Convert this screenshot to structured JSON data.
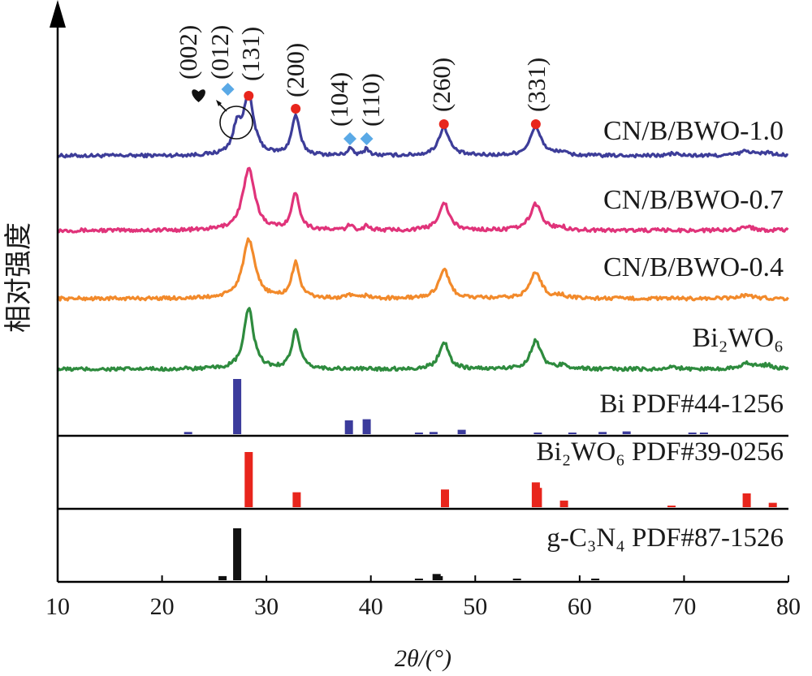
{
  "chart_data": {
    "type": "line",
    "xlabel": "2θ/(°)",
    "ylabel": "相对强度",
    "xlim": [
      10,
      80
    ],
    "xticks": [
      "10",
      "20",
      "30",
      "40",
      "50",
      "60",
      "70",
      "80"
    ],
    "grid": false,
    "series": [
      {
        "name": "CN/B/BWO-1.0",
        "color": "#3d3d99",
        "peaks": [
          [
            27.2,
            0.45,
            0.5
          ],
          [
            28.3,
            1.0,
            0.6
          ],
          [
            32.8,
            0.7,
            0.45
          ],
          [
            38.0,
            0.12,
            0.3
          ],
          [
            39.6,
            0.12,
            0.3
          ],
          [
            47.0,
            0.5,
            0.6
          ],
          [
            55.8,
            0.5,
            0.65
          ],
          [
            58.2,
            0.06,
            0.5
          ],
          [
            69.0,
            0.04,
            0.5
          ],
          [
            76.0,
            0.08,
            0.8
          ],
          [
            78.0,
            0.05,
            0.6
          ]
        ]
      },
      {
        "name": "CN/B/BWO-0.7",
        "color": "#e0337a",
        "peaks": [
          [
            28.3,
            1.0,
            0.7
          ],
          [
            32.8,
            0.6,
            0.45
          ],
          [
            38.0,
            0.08,
            0.3
          ],
          [
            39.6,
            0.08,
            0.3
          ],
          [
            47.0,
            0.45,
            0.6
          ],
          [
            55.8,
            0.43,
            0.65
          ],
          [
            58.2,
            0.05,
            0.5
          ],
          [
            76.0,
            0.06,
            0.8
          ]
        ]
      },
      {
        "name": "CN/B/BWO-0.4",
        "color": "#f28a2b",
        "peaks": [
          [
            28.3,
            1.0,
            0.7
          ],
          [
            32.8,
            0.6,
            0.45
          ],
          [
            38.0,
            0.06,
            0.3
          ],
          [
            39.6,
            0.06,
            0.3
          ],
          [
            47.0,
            0.5,
            0.6
          ],
          [
            55.8,
            0.45,
            0.65
          ],
          [
            58.2,
            0.05,
            0.5
          ],
          [
            76.0,
            0.06,
            0.8
          ]
        ]
      },
      {
        "name": "Bi₂WO₆",
        "color": "#2e8b3e",
        "peaks": [
          [
            28.3,
            1.0,
            0.55
          ],
          [
            32.8,
            0.63,
            0.45
          ],
          [
            47.0,
            0.45,
            0.55
          ],
          [
            55.8,
            0.47,
            0.6
          ],
          [
            58.5,
            0.07,
            0.5
          ],
          [
            69.0,
            0.04,
            0.5
          ],
          [
            76.0,
            0.1,
            0.8
          ],
          [
            78.0,
            0.06,
            0.6
          ]
        ]
      }
    ],
    "reference_patterns": [
      {
        "name": "Bi PDF#44-1256",
        "color": "#3b3b9c",
        "sticks": [
          [
            22.5,
            0.04
          ],
          [
            27.2,
            1.0
          ],
          [
            37.9,
            0.25
          ],
          [
            39.6,
            0.27
          ],
          [
            44.6,
            0.03
          ],
          [
            46.0,
            0.04
          ],
          [
            48.7,
            0.08
          ],
          [
            56.0,
            0.03
          ],
          [
            59.3,
            0.02
          ],
          [
            62.2,
            0.04
          ],
          [
            64.5,
            0.05
          ],
          [
            70.8,
            0.02
          ],
          [
            71.9,
            0.01
          ]
        ]
      },
      {
        "name": "Bi₂WO₆ PDF#39-0256",
        "color": "#e8251c",
        "sticks": [
          [
            28.3,
            1.0
          ],
          [
            32.9,
            0.27
          ],
          [
            47.1,
            0.32
          ],
          [
            55.8,
            0.45
          ],
          [
            56.0,
            0.35
          ],
          [
            58.5,
            0.12
          ],
          [
            68.8,
            0.03
          ],
          [
            76.0,
            0.25
          ],
          [
            78.5,
            0.08
          ]
        ]
      },
      {
        "name": "g-C₃N₄ PDF#87-1526",
        "color": "#111111",
        "sticks": [
          [
            25.8,
            0.08
          ],
          [
            27.2,
            1.0
          ],
          [
            44.6,
            0.03
          ],
          [
            46.3,
            0.12
          ],
          [
            46.5,
            0.08
          ],
          [
            54.0,
            0.02
          ],
          [
            61.5,
            0.02
          ]
        ]
      }
    ],
    "annotations": {
      "labels": [
        "(002)",
        "(012)",
        "(131)",
        "(200)",
        "(104)",
        "(110)",
        "(260)",
        "(331)"
      ],
      "marker_colors": {
        "bi2wo6": "#e8251c",
        "bi": "#5aa9e6",
        "gcn": "#111111"
      },
      "markers": [
        {
          "type": "heart",
          "x": 23.5
        },
        {
          "type": "diamond",
          "x": 26.3
        },
        {
          "type": "circle",
          "x": 28.3
        },
        {
          "type": "circle",
          "x": 32.8
        },
        {
          "type": "diamond",
          "x": 38.0
        },
        {
          "type": "diamond",
          "x": 39.6
        },
        {
          "type": "circle",
          "x": 47.0
        },
        {
          "type": "circle",
          "x": 55.8
        }
      ]
    }
  }
}
